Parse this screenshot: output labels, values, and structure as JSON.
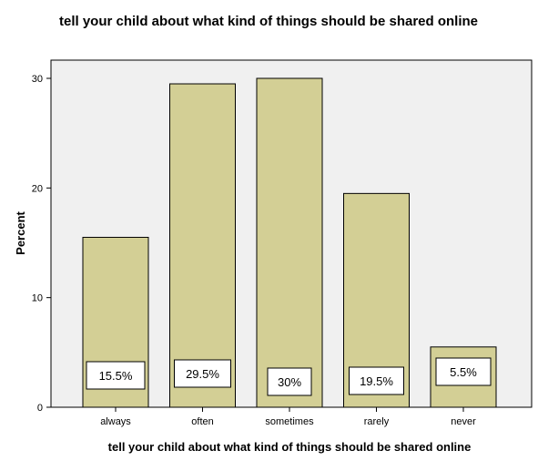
{
  "chart_data": {
    "type": "bar",
    "title": "tell your child about what kind of things should be shared online",
    "xlabel": "tell your child about what kind of things should be shared online",
    "ylabel": "Percent",
    "categories": [
      "always",
      "often",
      "sometimes",
      "rarely",
      "never"
    ],
    "values": [
      15.5,
      29.5,
      30,
      19.5,
      5.5
    ],
    "data_labels": [
      "15.5%",
      "29.5%",
      "30%",
      "19.5%",
      "5.5%"
    ],
    "yticks": [
      0,
      10,
      20,
      30
    ],
    "ylim": [
      0,
      30
    ],
    "grid": false,
    "legend": "none",
    "colors": {
      "bar_fill": "#d3cf95",
      "bar_stroke": "#000000",
      "plot_bg": "#f0f0f0",
      "label_box": "#ffffff"
    }
  }
}
